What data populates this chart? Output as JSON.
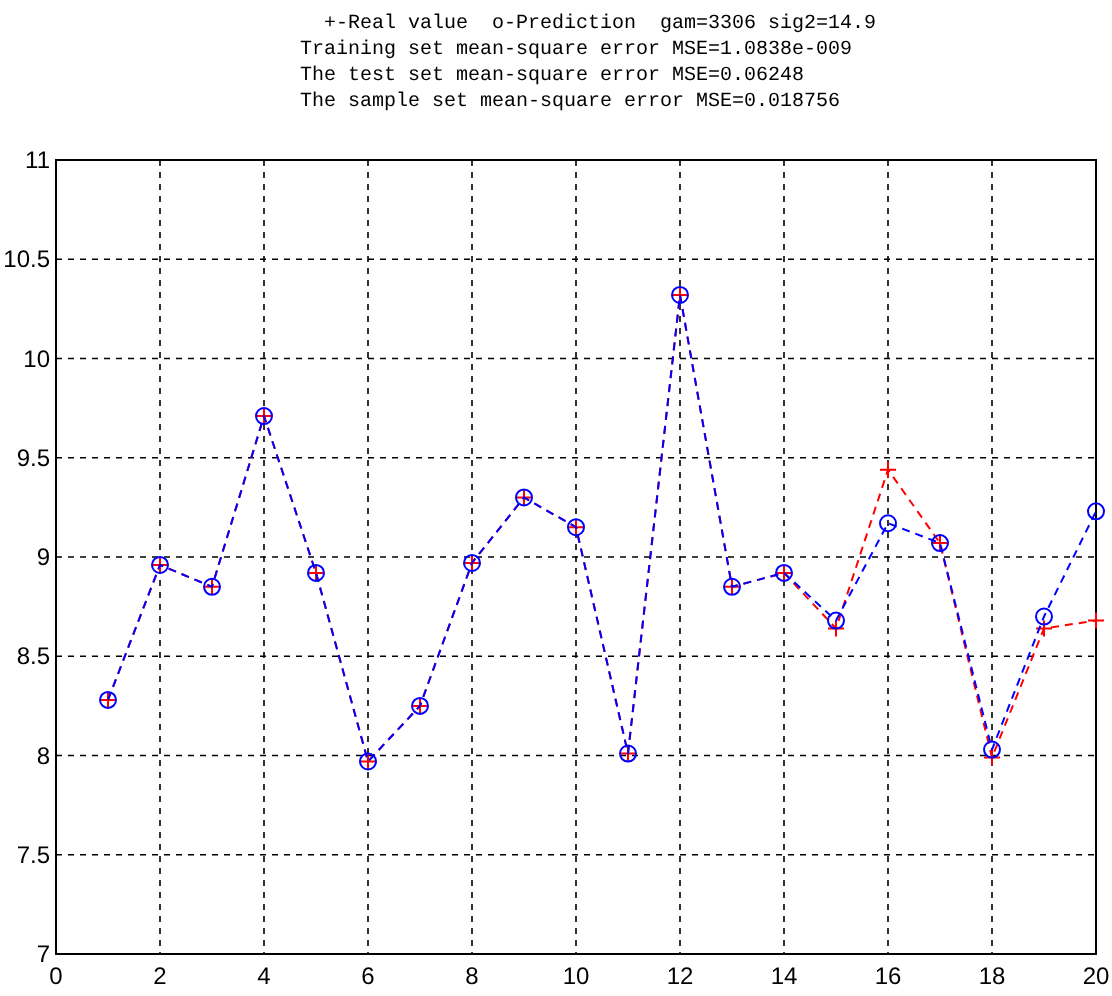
{
  "chart_data": {
    "type": "line",
    "title": "+-Real value  o-Prediction  gam=3306 sig2=14.9",
    "annotations": [
      "Training set mean-square error MSE=1.0838e-009",
      "The test set mean-square error MSE=0.06248",
      "The sample set mean-square error MSE=0.018756"
    ],
    "x": [
      1,
      2,
      3,
      4,
      5,
      6,
      7,
      8,
      9,
      10,
      11,
      12,
      13,
      14,
      15,
      16,
      17,
      18,
      19,
      20
    ],
    "series": [
      {
        "color": "#ff0000",
        "marker": "cross",
        "line_style": "dashed",
        "values": [
          8.28,
          8.96,
          8.85,
          9.71,
          8.92,
          7.97,
          8.25,
          8.97,
          9.3,
          9.15,
          8.01,
          10.32,
          8.85,
          8.92,
          8.64,
          9.44,
          9.07,
          7.99,
          8.64,
          8.68
        ]
      },
      {
        "color": "#0000ff",
        "marker": "circle",
        "line_style": "dashed",
        "values": [
          8.28,
          8.96,
          8.85,
          9.71,
          8.92,
          7.97,
          8.25,
          8.97,
          9.3,
          9.15,
          8.01,
          10.32,
          8.85,
          8.92,
          8.68,
          9.17,
          9.07,
          8.03,
          8.7,
          9.23
        ]
      }
    ],
    "xlim": [
      0,
      20
    ],
    "xticks": [
      0,
      2,
      4,
      6,
      8,
      10,
      12,
      14,
      16,
      18,
      20
    ],
    "ylim": [
      7,
      11
    ],
    "yticks": [
      7,
      7.5,
      8,
      8.5,
      9,
      9.5,
      10,
      10.5,
      11
    ],
    "grid": true
  }
}
